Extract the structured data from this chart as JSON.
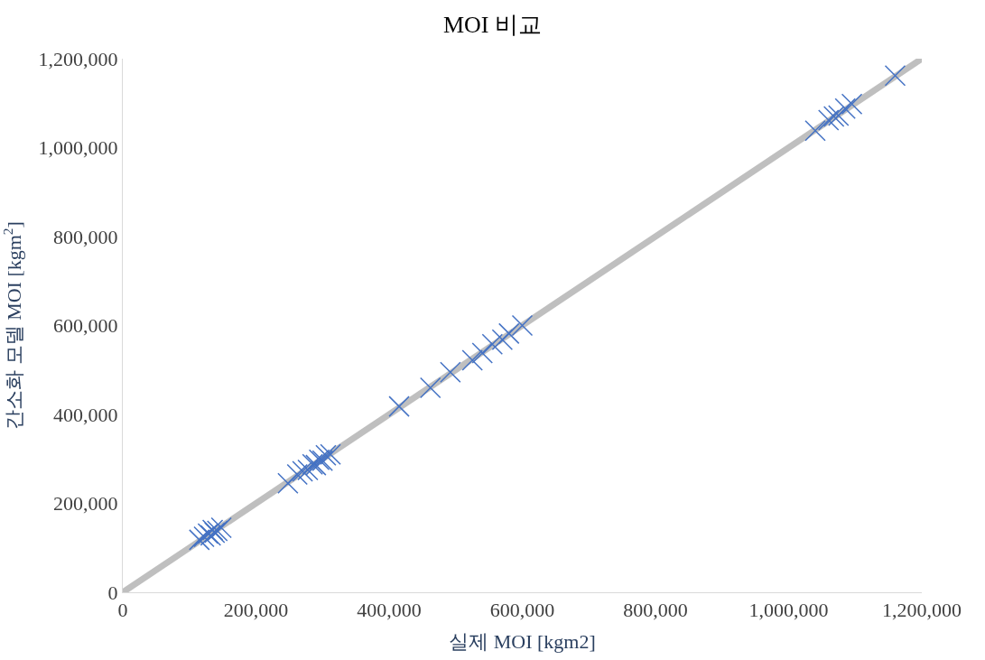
{
  "chart_data": {
    "type": "scatter",
    "title": "MOI 비교",
    "xlabel": "실제 MOI [kgm2]",
    "ylabel": "간소화 모델 MOI [kgm$^{2}$]",
    "xlim": [
      0,
      1200000
    ],
    "ylim": [
      0,
      1200000
    ],
    "xticks": [
      {
        "value": 0,
        "label": "0"
      },
      {
        "value": 200000,
        "label": "200,000"
      },
      {
        "value": 400000,
        "label": "400,000"
      },
      {
        "value": 600000,
        "label": "600,000"
      },
      {
        "value": 800000,
        "label": "800,000"
      },
      {
        "value": 1000000,
        "label": "1,000,000"
      },
      {
        "value": 1200000,
        "label": "1,200,000"
      }
    ],
    "yticks": [
      {
        "value": 0,
        "label": "0"
      },
      {
        "value": 200000,
        "label": "200,000"
      },
      {
        "value": 400000,
        "label": "400,000"
      },
      {
        "value": 600000,
        "label": "600,000"
      },
      {
        "value": 800000,
        "label": "800,000"
      },
      {
        "value": 1000000,
        "label": "1,000,000"
      },
      {
        "value": 1200000,
        "label": "1,200,000"
      }
    ],
    "series": [
      {
        "marker": "cross",
        "color": "#4472c4",
        "x": [
          115000,
          122000,
          128000,
          132000,
          135000,
          138000,
          142000,
          148000,
          248000,
          262000,
          270000,
          278000,
          285000,
          290000,
          295000,
          300000,
          305000,
          312000,
          415000,
          462000,
          492000,
          525000,
          540000,
          555000,
          570000,
          580000,
          600000,
          1040000,
          1060000,
          1068000,
          1075000,
          1085000,
          1095000,
          1160000
        ],
        "values": [
          118000,
          125000,
          132000,
          128000,
          140000,
          134000,
          138000,
          145000,
          245000,
          265000,
          272000,
          275000,
          288000,
          286000,
          298000,
          296000,
          308000,
          310000,
          418000,
          460000,
          495000,
          522000,
          538000,
          558000,
          568000,
          582000,
          600000,
          1038000,
          1062000,
          1070000,
          1072000,
          1088000,
          1098000,
          1162000
        ]
      },
      {
        "type": "line",
        "color": "#bfbfbf",
        "x": [
          0,
          1200000
        ],
        "values": [
          0,
          1200000
        ]
      }
    ]
  }
}
